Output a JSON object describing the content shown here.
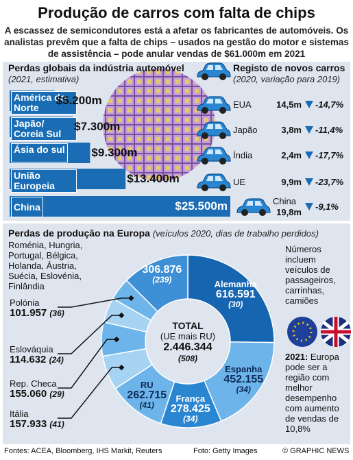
{
  "title": "Produção de carros com falta de chips",
  "subtitle": "A escassez de semicondutores está a afetar os fabricantes de automóveis. Os analistas prevêm que a falta de chips – usados na gestão do motor e sistemas de assistência – pode anular vendas de $61.000m em 2021",
  "chart_data": [
    {
      "type": "bar",
      "title": "Perdas globais da indústria automóvel",
      "subtitle": "(2021, estimativa)",
      "categories": [
        "América do Norte",
        "Japão/ Coreia Sul",
        "Ásia do sul",
        "União Europeia",
        "China"
      ],
      "values": [
        5200,
        7300,
        9300,
        13400,
        25500
      ],
      "value_labels": [
        "$5.200m",
        "$7.300m",
        "$9.300m",
        "$13.400m",
        "$25.500m"
      ],
      "xlim": [
        0,
        25500
      ],
      "color": "#1a6db5"
    },
    {
      "type": "table",
      "title": "Registo de novos carros",
      "subtitle": "(2020, variação para 2019)",
      "categories": [
        "EUA",
        "Japão",
        "Índia",
        "UE",
        "China"
      ],
      "series": [
        {
          "values": [
            14.5,
            3.8,
            2.4,
            9.9,
            19.8
          ],
          "value_labels": [
            "14,5m",
            "3,8m",
            "2,4m",
            "9,9m",
            "19,8m"
          ]
        },
        {
          "values": [
            -14.7,
            -11.4,
            -17.7,
            -23.7,
            -9.1
          ],
          "value_labels": [
            "-14,7%",
            "-11,4%",
            "-17,7%",
            "-23,7%",
            "-9,1%"
          ],
          "color": "#1a6db5"
        }
      ]
    },
    {
      "type": "pie",
      "title": "Perdas de produção na Europa",
      "subtitle": "(veículos 2020, dias de trabalho perdidos)",
      "categories": [
        "Alemanha",
        "Espanha",
        "França",
        "RU",
        "Itália",
        "Rep. Checa",
        "Eslováquia",
        "Polónia",
        "Roménia, Hungria, Portugal, Bélgica, Holanda, Áustria, Suécia, Eslovénia, Finlândia"
      ],
      "values": [
        616591,
        452155,
        278425,
        262715,
        157933,
        155060,
        114632,
        101957,
        306876
      ],
      "value_labels": [
        "616.591",
        "452.155",
        "278.425",
        "262.715",
        "157.933",
        "155.060",
        "114.632",
        "101.957",
        "306.876"
      ],
      "days": [
        "(30)",
        "(34)",
        "(34)",
        "(41)",
        "(41)",
        "(29)",
        "(24)",
        "(36)",
        "(239)"
      ],
      "colors": [
        "#1565b0",
        "#6cb4ea",
        "#2a86d1",
        "#6cb4ea",
        "#a7d3f3",
        "#6cb4ea",
        "#a7d3f3",
        "#6cb4ea",
        "#3d8fd6"
      ],
      "center": {
        "label": "TOTAL",
        "note": "(UE mais RU)",
        "value": "2.446.344",
        "days": "(508)"
      }
    }
  ],
  "notes": {
    "vehicles": "Números incluem veículos de passageiros, carrinhas, camiões",
    "year": "2021:",
    "outlook": "Europa pode ser a região com melhor desempenho com aumento de vendas de 10,8%"
  },
  "footer": {
    "sources": "Fontes: ACEA, Bloomberg, IHS Markit, Reuters",
    "photo": "Foto: Getty Images",
    "credit": "© GRAPHIC NEWS"
  }
}
